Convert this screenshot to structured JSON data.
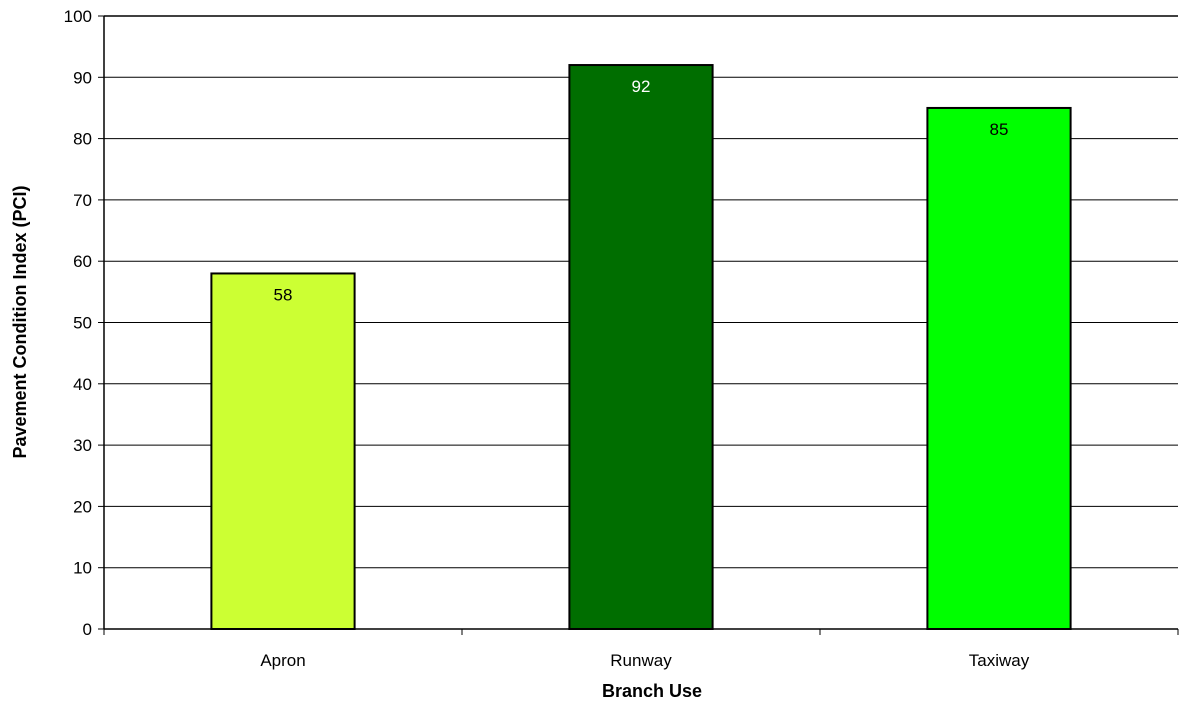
{
  "chart_data": {
    "type": "bar",
    "title": "",
    "xlabel": "Branch Use",
    "ylabel": "Pavement Condition Index (PCI)",
    "categories": [
      "Apron",
      "Runway",
      "Taxiway"
    ],
    "values": [
      58,
      92,
      85
    ],
    "data_labels": [
      "58",
      "92",
      "85"
    ],
    "ylim": [
      0,
      100
    ],
    "yticks": [
      0,
      10,
      20,
      30,
      40,
      50,
      60,
      70,
      80,
      90,
      100
    ],
    "ytick_labels": [
      "0",
      "10",
      "20",
      "30",
      "40",
      "50",
      "60",
      "70",
      "80",
      "90",
      "100"
    ],
    "bar_colors": [
      "#ccff33",
      "#006e00",
      "#00ff00"
    ],
    "label_colors": [
      "#000000",
      "#ffffff",
      "#000000"
    ],
    "grid": true,
    "legend": "none"
  }
}
